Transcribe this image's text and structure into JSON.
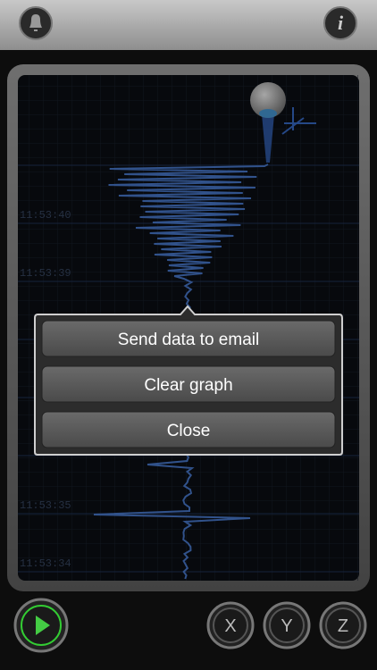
{
  "toolbar": {
    "info": "i"
  },
  "graph": {
    "time_labels": [
      "11:53:40",
      "11:53:39",
      "11:53:35",
      "11:53:34"
    ]
  },
  "menu": {
    "items": [
      "Send data to email",
      "Clear graph",
      "Close"
    ]
  },
  "axes": {
    "buttons": [
      "X",
      "Y",
      "Z"
    ]
  }
}
